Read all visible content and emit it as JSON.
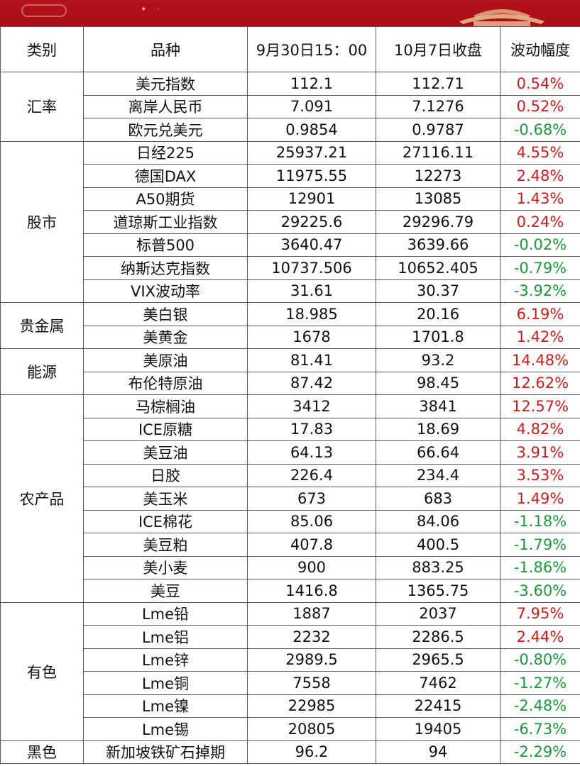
{
  "header": {
    "category": "类别",
    "variety": "品种",
    "col_sep30": "9月30日15：00",
    "col_oct7": "10月7日收盘",
    "col_change": "波动幅度"
  },
  "groups": [
    {
      "category": "汇率",
      "rows": [
        {
          "variety": "美元指数",
          "sep30": "112.1",
          "oct7": "112.71",
          "change": "0.54%",
          "dir": "up"
        },
        {
          "variety": "离岸人民币",
          "sep30": "7.091",
          "oct7": "7.1276",
          "change": "0.52%",
          "dir": "up"
        },
        {
          "variety": "欧元兑美元",
          "sep30": "0.9854",
          "oct7": "0.9787",
          "change": "-0.68%",
          "dir": "down"
        }
      ]
    },
    {
      "category": "股市",
      "rows": [
        {
          "variety": "日经225",
          "sep30": "25937.21",
          "oct7": "27116.11",
          "change": "4.55%",
          "dir": "up"
        },
        {
          "variety": "德国DAX",
          "sep30": "11975.55",
          "oct7": "12273",
          "change": "2.48%",
          "dir": "up"
        },
        {
          "variety": "A50期货",
          "sep30": "12901",
          "oct7": "13085",
          "change": "1.43%",
          "dir": "up"
        },
        {
          "variety": "道琼斯工业指数",
          "sep30": "29225.6",
          "oct7": "29296.79",
          "change": "0.24%",
          "dir": "up"
        },
        {
          "variety": "标普500",
          "sep30": "3640.47",
          "oct7": "3639.66",
          "change": "-0.02%",
          "dir": "down"
        },
        {
          "variety": "纳斯达克指数",
          "sep30": "10737.506",
          "oct7": "10652.405",
          "change": "-0.79%",
          "dir": "down"
        },
        {
          "variety": "VIX波动率",
          "sep30": "31.61",
          "oct7": "30.37",
          "change": "-3.92%",
          "dir": "down"
        }
      ]
    },
    {
      "category": "贵金属",
      "rows": [
        {
          "variety": "美白银",
          "sep30": "18.985",
          "oct7": "20.16",
          "change": "6.19%",
          "dir": "up"
        },
        {
          "variety": "美黄金",
          "sep30": "1678",
          "oct7": "1701.8",
          "change": "1.42%",
          "dir": "up"
        }
      ]
    },
    {
      "category": "能源",
      "rows": [
        {
          "variety": "美原油",
          "sep30": "81.41",
          "oct7": "93.2",
          "change": "14.48%",
          "dir": "up"
        },
        {
          "variety": "布伦特原油",
          "sep30": "87.42",
          "oct7": "98.45",
          "change": "12.62%",
          "dir": "up"
        }
      ]
    },
    {
      "category": "农产品",
      "rows": [
        {
          "variety": "马棕榈油",
          "sep30": "3412",
          "oct7": "3841",
          "change": "12.57%",
          "dir": "up"
        },
        {
          "variety": "ICE原糖",
          "sep30": "17.83",
          "oct7": "18.69",
          "change": "4.82%",
          "dir": "up"
        },
        {
          "variety": "美豆油",
          "sep30": "64.13",
          "oct7": "66.64",
          "change": "3.91%",
          "dir": "up"
        },
        {
          "variety": "日胶",
          "sep30": "226.4",
          "oct7": "234.4",
          "change": "3.53%",
          "dir": "up"
        },
        {
          "variety": "美玉米",
          "sep30": "673",
          "oct7": "683",
          "change": "1.49%",
          "dir": "up"
        },
        {
          "variety": "ICE棉花",
          "sep30": "85.06",
          "oct7": "84.06",
          "change": "-1.18%",
          "dir": "down"
        },
        {
          "variety": "美豆粕",
          "sep30": "407.8",
          "oct7": "400.5",
          "change": "-1.79%",
          "dir": "down"
        },
        {
          "variety": "美小麦",
          "sep30": "900",
          "oct7": "883.25",
          "change": "-1.86%",
          "dir": "down"
        },
        {
          "variety": "美豆",
          "sep30": "1416.8",
          "oct7": "1365.75",
          "change": "-3.60%",
          "dir": "down"
        }
      ]
    },
    {
      "category": "有色",
      "rows": [
        {
          "variety": "Lme铅",
          "sep30": "1887",
          "oct7": "2037",
          "change": "7.95%",
          "dir": "up"
        },
        {
          "variety": "Lme铝",
          "sep30": "2232",
          "oct7": "2286.5",
          "change": "2.44%",
          "dir": "up"
        },
        {
          "variety": "Lme锌",
          "sep30": "2989.5",
          "oct7": "2965.5",
          "change": "-0.80%",
          "dir": "down"
        },
        {
          "variety": "Lme铜",
          "sep30": "7558",
          "oct7": "7462",
          "change": "-1.27%",
          "dir": "down"
        },
        {
          "variety": "Lme镍",
          "sep30": "22985",
          "oct7": "22415",
          "change": "-2.48%",
          "dir": "down"
        },
        {
          "variety": "Lme锡",
          "sep30": "20805",
          "oct7": "19405",
          "change": "-6.73%",
          "dir": "down"
        }
      ]
    },
    {
      "category": "黑色",
      "rows": [
        {
          "variety": "新加坡铁矿石掉期",
          "sep30": "96.2",
          "oct7": "94",
          "change": "-2.29%",
          "dir": "down"
        }
      ]
    }
  ],
  "colors": {
    "banner": "#b3121a",
    "up": "#d31a1a",
    "down": "#1a9a3a",
    "border": "#5a5a5a"
  }
}
